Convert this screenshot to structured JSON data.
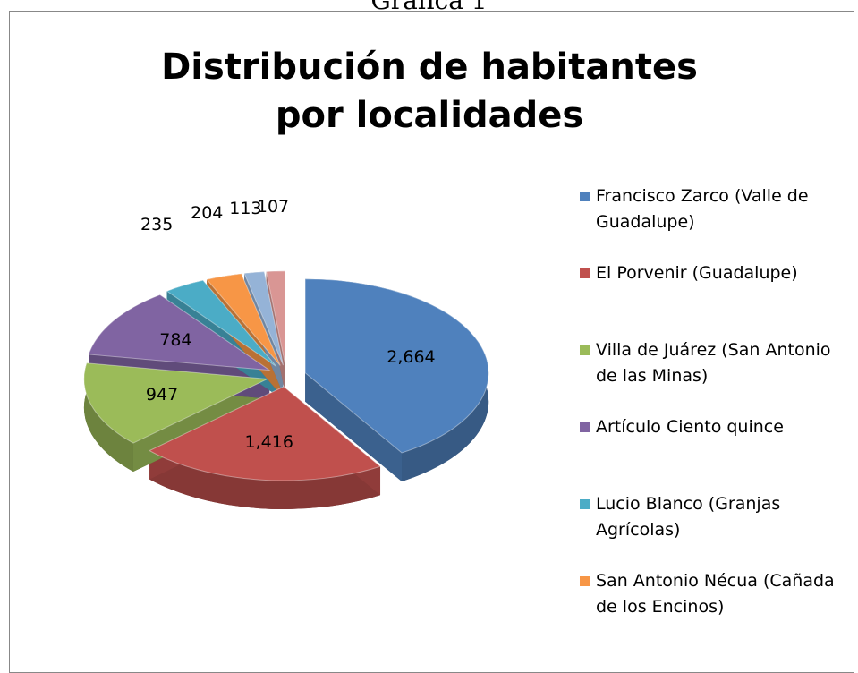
{
  "caption": "Gráfica 1",
  "chart_data": {
    "type": "pie3d",
    "title": "Distribución de habitantes por localidades",
    "categories": [
      "Francisco Zarco (Valle de Guadalupe)",
      "El Porvenir (Guadalupe)",
      "Villa de Juárez (San Antonio de las Minas)",
      "Artículo Ciento quince",
      "Lucio Blanco (Granjas Agrícolas)",
      "San Antonio Nécua (Cañada de los Encinos)",
      null,
      null
    ],
    "values": [
      2664,
      1416,
      947,
      784,
      235,
      204,
      113,
      107
    ],
    "value_labels": [
      "2,664",
      "1,416",
      "947",
      "784",
      "235",
      "204",
      "113",
      "107"
    ],
    "colors": [
      "#4f81bd",
      "#c0504d",
      "#9bbb59",
      "#8064a2",
      "#4bacc6",
      "#f79646",
      "#95b3d7",
      "#d99694"
    ]
  }
}
